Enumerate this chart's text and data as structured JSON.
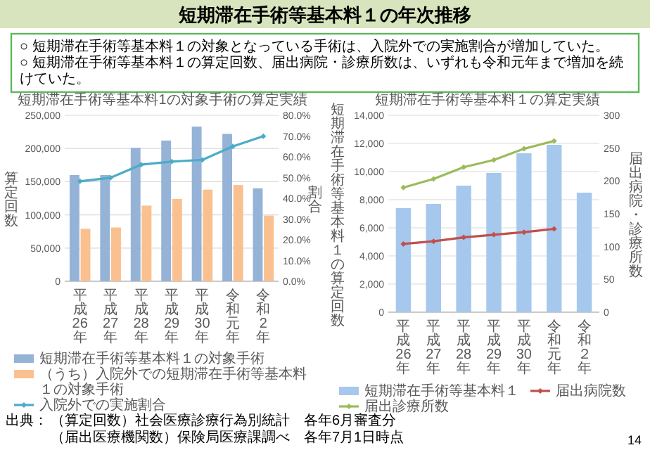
{
  "chart_data": [
    {
      "type": "other",
      "title": "短期滞在手術等基本料１の年次推移",
      "annotations": [
        "○ 短期滞在手術等基本料１の対象となっている手術は、入院外での実施割合が増加していた。",
        "○ 短期滞在手術等基本料１の算定回数、届出病院・診療所数は、いずれも令和元年まで増加を続けていた。"
      ]
    },
    {
      "type": "bar",
      "title": "短期滞在手術等基本料1の対象手術の算定実績",
      "ylabel": "算定回数",
      "y2label": "割合",
      "categories": [
        "平成26年",
        "平成27年",
        "平成28年",
        "平成29年",
        "平成30年",
        "令和元年",
        "令和2年"
      ],
      "series": [
        {
          "name": "短期滞在手術等基本料１の対象手術",
          "color": "#95b3d7",
          "values": [
            160000,
            160000,
            201000,
            212000,
            233000,
            222000,
            140000
          ]
        },
        {
          "name": "（うち）入院外での短期滞在手術等基本料１の対象手術",
          "color": "#fac090",
          "values": [
            79000,
            81000,
            114000,
            124000,
            138000,
            145000,
            99000
          ]
        },
        {
          "name": "入院外での実施割合",
          "type": "line",
          "axis": "y2",
          "color": "#4bacc6",
          "values": [
            48.2,
            49.9,
            56.2,
            57.7,
            58.5,
            65.0,
            69.9
          ]
        }
      ],
      "ylim": [
        0,
        250000
      ],
      "yticks": [
        0,
        {
          "value": 50000,
          "label": "50,000"
        },
        {
          "value": 100000,
          "label": "100,000"
        },
        {
          "value": 150000,
          "label": "150,000"
        },
        {
          "value": 200000,
          "label": "200,000"
        },
        {
          "value": 250000,
          "label": "250,000"
        }
      ],
      "y2lim": [
        0,
        80
      ],
      "y2ticks": [
        {
          "value": 0,
          "label": "0.0%"
        },
        {
          "value": 10,
          "label": "10.0%"
        },
        {
          "value": 20,
          "label": "20.0%"
        },
        {
          "value": 30,
          "label": "30.0%"
        },
        {
          "value": 40,
          "label": "40.0%"
        },
        {
          "value": 50,
          "label": "50.0%"
        },
        {
          "value": 60,
          "label": "60.0%"
        },
        {
          "value": 70,
          "label": "70.0%"
        },
        {
          "value": 80,
          "label": "80.0%"
        }
      ],
      "grid": "y",
      "legend": "bottom",
      "marker": "diamond",
      "annotations": [
        "出典：",
        "（算定回数）社会医療診療行為別統計　各年6月審査分",
        "（届出医療機関数）保険局医療課調べ　各年7月1日時点"
      ]
    },
    {
      "type": "bar",
      "title": "短期滞在手術等基本料１の算定実績",
      "ylabel": "短期滞在手術等基本料１の算定回数",
      "y2label": "届出病院・診療所数",
      "categories": [
        "平成26年",
        "平成27年",
        "平成28年",
        "平成29年",
        "平成30年",
        "令和元年",
        "令和２年"
      ],
      "series": [
        {
          "name": "短期滞在手術等基本料１",
          "color": "#a6c8ed",
          "values": [
            7400,
            7700,
            9000,
            9900,
            11300,
            11900,
            8500
          ]
        },
        {
          "name": "届出病院数",
          "type": "line",
          "axis": "y2",
          "color": "#c0504d",
          "values": [
            104,
            108,
            114,
            118,
            122,
            127,
            null
          ]
        },
        {
          "name": "届出診療所数",
          "type": "line",
          "axis": "y2",
          "color": "#9bbb59",
          "values": [
            190,
            203,
            221,
            232,
            249,
            261,
            null
          ]
        }
      ],
      "ylim": [
        0,
        14000
      ],
      "yticks": [
        0,
        {
          "value": 2000,
          "label": "2,000"
        },
        {
          "value": 4000,
          "label": "4,000"
        },
        {
          "value": 6000,
          "label": "6,000"
        },
        {
          "value": 8000,
          "label": "8,000"
        },
        {
          "value": 10000,
          "label": "10,000"
        },
        {
          "value": 12000,
          "label": "12,000"
        },
        {
          "value": 14000,
          "label": "14,000"
        }
      ],
      "y2lim": [
        0,
        300
      ],
      "y2ticks": [
        0,
        50,
        100,
        150,
        200,
        250,
        300
      ],
      "grid": "y",
      "legend": "bottom",
      "marker": "diamond",
      "annotations": [
        "14"
      ]
    }
  ]
}
